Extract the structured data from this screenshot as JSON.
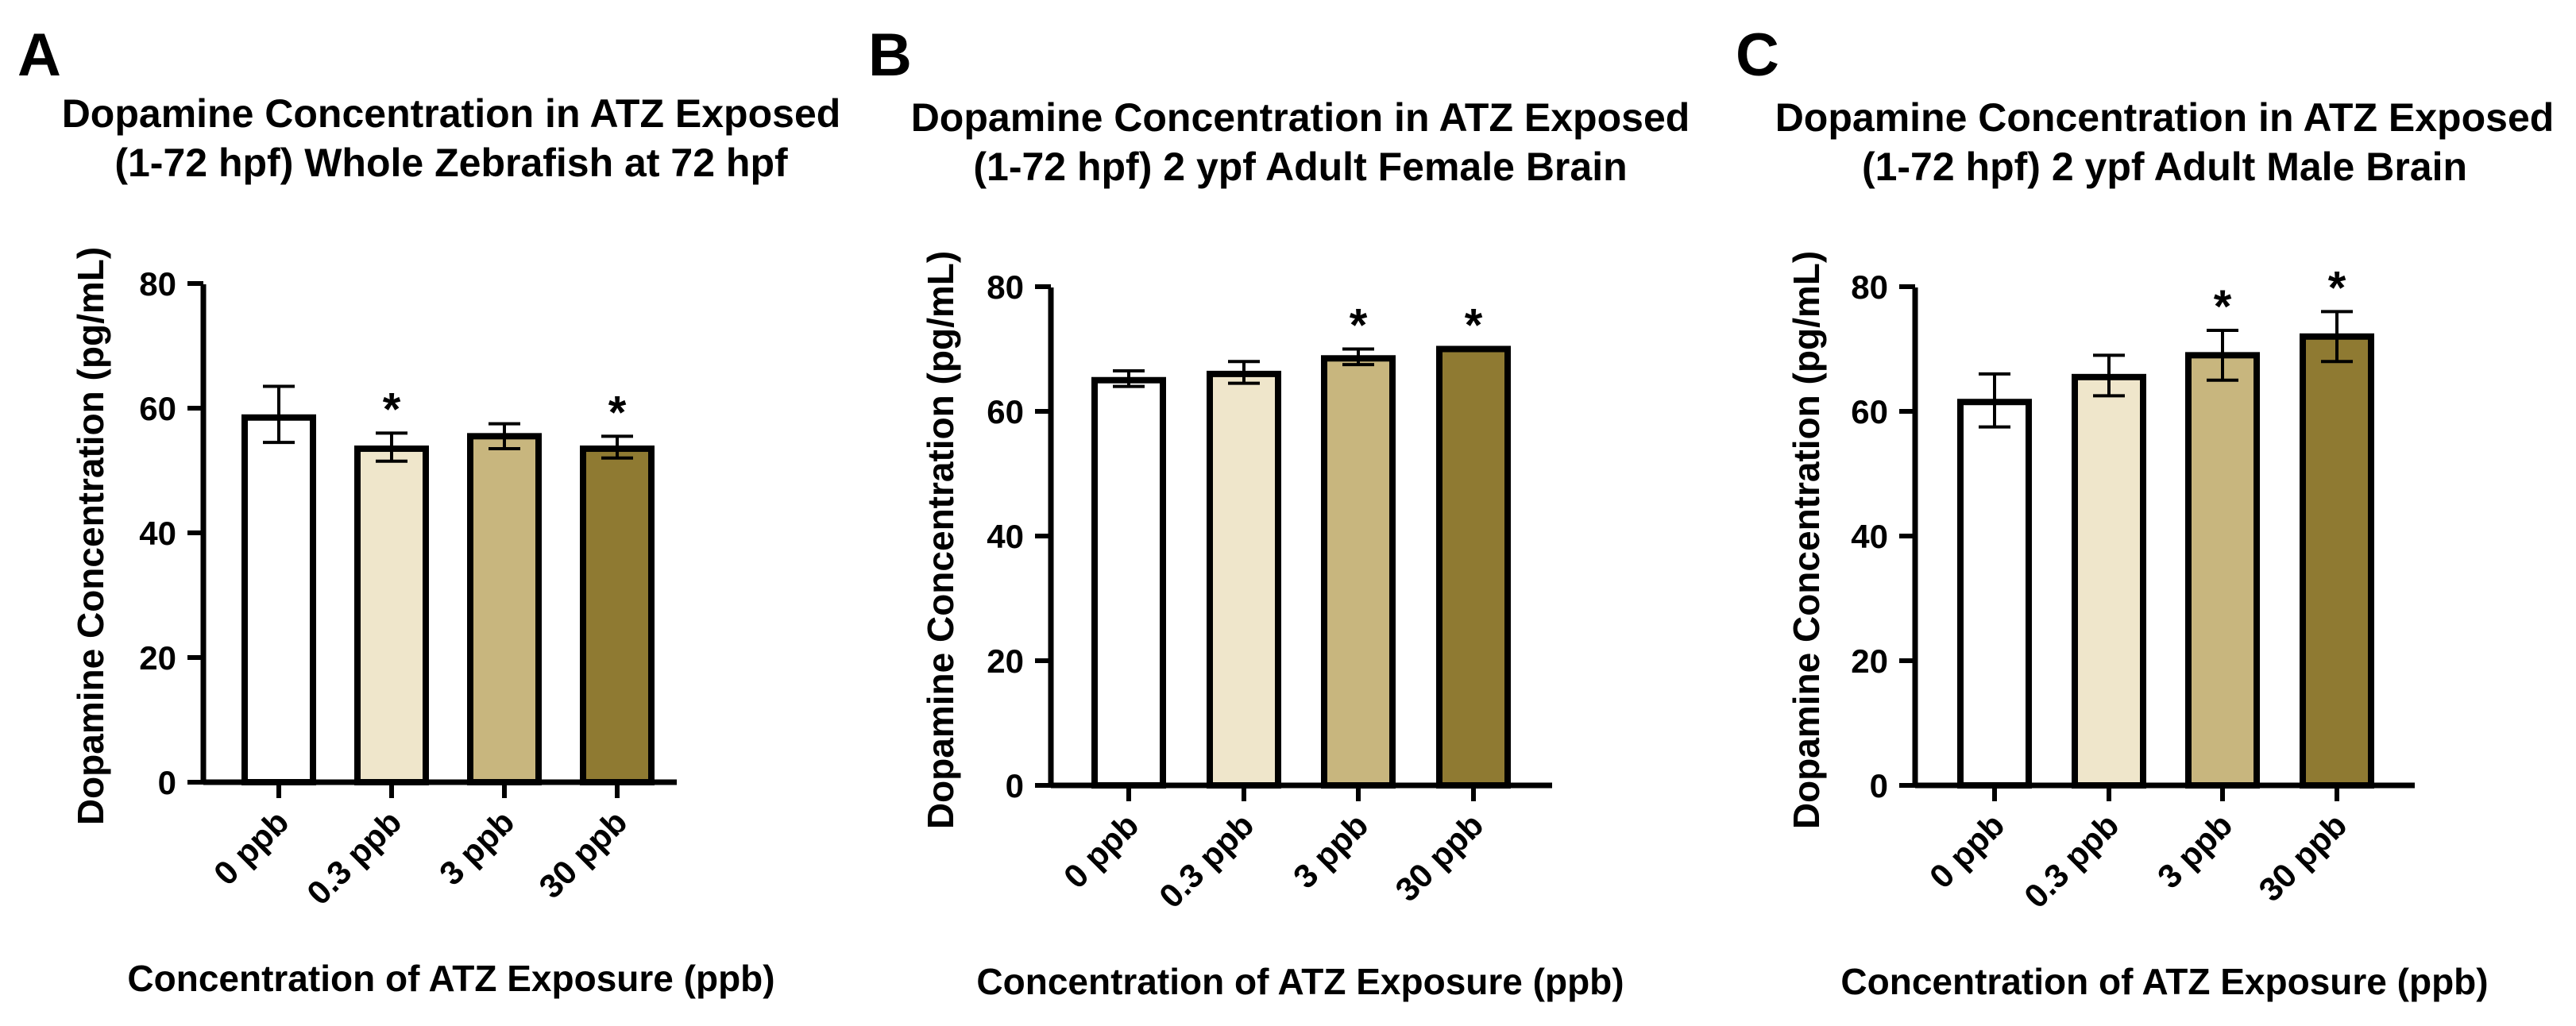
{
  "chart_data": [
    {
      "type": "bar",
      "panel_label": "A",
      "title_lines": [
        "Dopamine Concentration in ATZ Exposed",
        "(1-72 hpf) Whole Zebrafish at 72 hpf"
      ],
      "xlabel": "Concentration of ATZ Exposure (ppb)",
      "ylabel": "Dopamine Concentration (pg/mL)",
      "ylim": [
        0,
        80
      ],
      "yticks": [
        0,
        20,
        40,
        60,
        80
      ],
      "categories": [
        "0 ppb",
        "0.3 ppb",
        "3 ppb",
        "30 ppb"
      ],
      "values": [
        58.5,
        53.5,
        55.5,
        53.5
      ],
      "error_low": [
        54.5,
        51.5,
        53.5,
        52
      ],
      "error_high": [
        63.5,
        56,
        57.5,
        55.5
      ],
      "significance": [
        "",
        "*",
        "",
        "*"
      ],
      "colors": [
        "#ffffff",
        "#efe6cb",
        "#c8b67e",
        "#8f7a32"
      ]
    },
    {
      "type": "bar",
      "panel_label": "B",
      "title_lines": [
        "Dopamine Concentration in ATZ Exposed",
        "(1-72 hpf) 2 ypf Adult Female Brain"
      ],
      "xlabel": "Concentration of ATZ Exposure (ppb)",
      "ylabel": "Dopamine Concentration (pg/mL)",
      "ylim": [
        0,
        80
      ],
      "yticks": [
        0,
        20,
        40,
        60,
        80
      ],
      "categories": [
        "0 ppb",
        "0.3 ppb",
        "3 ppb",
        "30 ppb"
      ],
      "values": [
        65,
        66,
        68.5,
        70
      ],
      "error_low": [
        64,
        64.5,
        67.5,
        70
      ],
      "error_high": [
        66.5,
        68,
        70,
        70
      ],
      "significance": [
        "",
        "",
        "*",
        "*"
      ],
      "colors": [
        "#ffffff",
        "#efe6cb",
        "#c8b67e",
        "#8f7a32"
      ]
    },
    {
      "type": "bar",
      "panel_label": "C",
      "title_lines": [
        "Dopamine Concentration in ATZ Exposed",
        "(1-72 hpf) 2 ypf Adult Male Brain"
      ],
      "xlabel": "Concentration of ATZ Exposure (ppb)",
      "ylabel": "Dopamine Concentration (pg/mL)",
      "ylim": [
        0,
        80
      ],
      "yticks": [
        0,
        20,
        40,
        60,
        80
      ],
      "categories": [
        "0 ppb",
        "0.3 ppb",
        "3 ppb",
        "30 ppb"
      ],
      "values": [
        61.5,
        65.5,
        69,
        72
      ],
      "error_low": [
        57.5,
        62.5,
        65,
        68
      ],
      "error_high": [
        66,
        69,
        73,
        76
      ],
      "significance": [
        "",
        "",
        "*",
        "*"
      ],
      "colors": [
        "#ffffff",
        "#efe6cb",
        "#c8b67e",
        "#8f7a32"
      ]
    }
  ]
}
